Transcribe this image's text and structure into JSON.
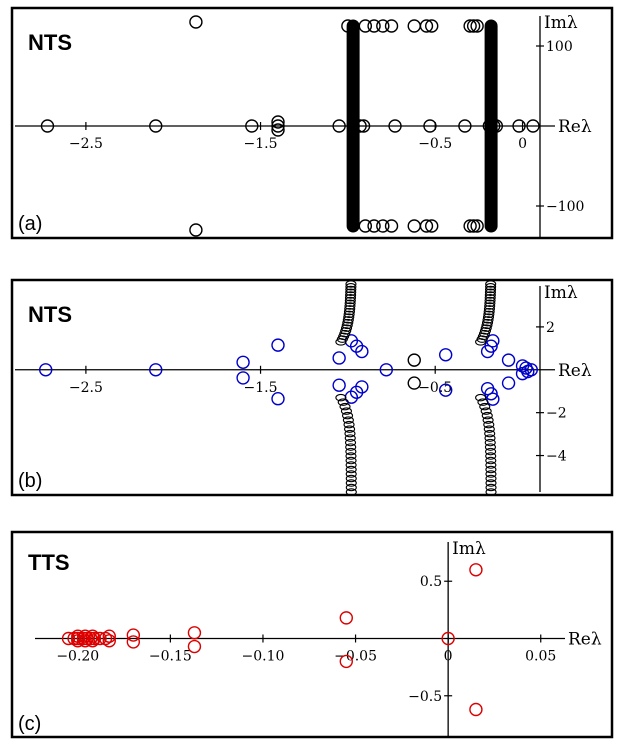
{
  "panels": [
    {
      "id": "a",
      "title": "NTS",
      "label": "(a)"
    },
    {
      "id": "b",
      "title": "NTS",
      "label": "(b)"
    },
    {
      "id": "c",
      "title": "TTS",
      "label": "(c)"
    }
  ],
  "chart_data": [
    {
      "type": "scatter",
      "title": "NTS",
      "panel_label": "(a)",
      "xlabel": "Reλ",
      "ylabel": "Imλ",
      "xlim": [
        -2.82,
        0.1
      ],
      "ylim": [
        -140,
        140
      ],
      "xticks": [
        -2.5,
        -1.5,
        -0.5,
        0
      ],
      "xtick_labels": [
        "−2.5",
        "−1.5",
        "−0.5",
        "0"
      ],
      "yticks": [
        100,
        -100
      ],
      "ytick_labels": [
        "100",
        "−100"
      ],
      "color": "#000000",
      "series": [
        {
          "points": [
            [
              -2.72,
              0
            ],
            [
              -2.1,
              0
            ],
            [
              -1.55,
              0
            ],
            [
              -1.4,
              0
            ],
            [
              -1.05,
              0
            ],
            [
              -0.97,
              0
            ],
            [
              -0.93,
              0
            ],
            [
              -0.91,
              0
            ],
            [
              -0.73,
              0
            ],
            [
              -0.53,
              0
            ],
            [
              -0.33,
              0
            ],
            [
              -0.19,
              0
            ],
            [
              -0.165,
              0
            ],
            [
              -0.15,
              0
            ],
            [
              -0.02,
              0
            ],
            [
              0.06,
              0
            ],
            [
              -1.4,
              5
            ],
            [
              -1.4,
              -5
            ],
            [
              -1.87,
              130
            ],
            [
              -1.87,
              -130
            ],
            [
              -1.0,
              125
            ],
            [
              -0.9,
              125
            ],
            [
              -0.85,
              125
            ],
            [
              -0.8,
              125
            ],
            [
              -0.75,
              125
            ],
            [
              -0.62,
              125
            ],
            [
              -0.55,
              125
            ],
            [
              -0.52,
              125
            ],
            [
              -0.3,
              125
            ],
            [
              -0.28,
              125
            ],
            [
              -0.26,
              125
            ],
            [
              -0.9,
              -125
            ],
            [
              -0.85,
              -125
            ],
            [
              -0.8,
              -125
            ],
            [
              -0.75,
              -125
            ],
            [
              -0.62,
              -125
            ],
            [
              -0.55,
              -125
            ],
            [
              -0.52,
              -125
            ],
            [
              -0.3,
              -125
            ],
            [
              -0.28,
              -125
            ],
            [
              -0.26,
              -125
            ]
          ],
          "dense_lines": [
            {
              "x": -0.97,
              "y_from": -125,
              "y_to": 125
            },
            {
              "x": -0.18,
              "y_from": -125,
              "y_to": 125
            }
          ]
        }
      ]
    },
    {
      "type": "scatter",
      "title": "NTS",
      "panel_label": "(b)",
      "xlabel": "Reλ",
      "ylabel": "Imλ",
      "xlim": [
        -2.82,
        0.1
      ],
      "ylim": [
        -5.7,
        4.0
      ],
      "xticks": [
        -2.5,
        -1.5,
        -0.5
      ],
      "xtick_labels": [
        "−2.5",
        "−1.5",
        "−0.5"
      ],
      "yticks": [
        2,
        -2,
        -4
      ],
      "ytick_labels": [
        "2",
        "−2",
        "−4"
      ],
      "series": [
        {
          "color": "#0000cc",
          "points": [
            [
              -2.73,
              0
            ],
            [
              -2.1,
              0
            ],
            [
              -1.6,
              0.35
            ],
            [
              -1.6,
              -0.38
            ],
            [
              -1.4,
              1.15
            ],
            [
              -1.4,
              -1.35
            ],
            [
              -1.05,
              0.55
            ],
            [
              -1.05,
              -0.72
            ],
            [
              -0.98,
              1.35
            ],
            [
              -0.95,
              1.1
            ],
            [
              -0.92,
              0.85
            ],
            [
              -0.98,
              -1.28
            ],
            [
              -0.95,
              -1.05
            ],
            [
              -0.92,
              -0.8
            ],
            [
              -0.78,
              0
            ],
            [
              -0.44,
              0.7
            ],
            [
              -0.44,
              -0.95
            ],
            [
              -0.2,
              0.85
            ],
            [
              -0.18,
              1.1
            ],
            [
              -0.17,
              1.35
            ],
            [
              -0.2,
              -0.88
            ],
            [
              -0.18,
              -1.12
            ],
            [
              -0.17,
              -1.37
            ],
            [
              -0.08,
              0.45
            ],
            [
              -0.08,
              -0.62
            ],
            [
              0.0,
              0.18
            ],
            [
              0.0,
              -0.18
            ],
            [
              0.02,
              0.08
            ],
            [
              0.03,
              -0.08
            ],
            [
              0.05,
              0
            ]
          ]
        },
        {
          "color": "#000000",
          "points": [
            [
              -0.62,
              0.45
            ],
            [
              -0.62,
              -0.62
            ]
          ],
          "curves": [
            {
              "x_base": -0.98,
              "y_from": 1.3,
              "y_to": 4.0
            },
            {
              "x_base": -0.98,
              "y_from": -1.3,
              "y_to": -5.7
            },
            {
              "x_base": -0.18,
              "y_from": 1.3,
              "y_to": 4.0
            },
            {
              "x_base": -0.18,
              "y_from": -1.3,
              "y_to": -5.7
            }
          ]
        }
      ]
    },
    {
      "type": "scatter",
      "title": "TTS",
      "panel_label": "(c)",
      "xlabel": "Reλ",
      "ylabel": "Imλ",
      "xlim": [
        -0.215,
        0.055
      ],
      "ylim": [
        -0.86,
        0.86
      ],
      "xticks": [
        -0.2,
        -0.15,
        -0.1,
        -0.05,
        0,
        0.05
      ],
      "xtick_labels": [
        "−0.20",
        "−0.15",
        "−0.10",
        "−0.05",
        "0",
        "0.05"
      ],
      "yticks": [
        0.5,
        -0.5
      ],
      "ytick_labels": [
        "0.5",
        "−0.5"
      ],
      "color": "#dd0000",
      "series": [
        {
          "points": [
            [
              -0.205,
              0
            ],
            [
              -0.202,
              0
            ],
            [
              -0.2,
              0
            ],
            [
              -0.197,
              0
            ],
            [
              -0.195,
              0
            ],
            [
              -0.193,
              0
            ],
            [
              -0.191,
              0
            ],
            [
              -0.188,
              0
            ],
            [
              -0.185,
              0
            ],
            [
              -0.2,
              0.02
            ],
            [
              -0.2,
              -0.02
            ],
            [
              -0.196,
              0.02
            ],
            [
              -0.196,
              -0.02
            ],
            [
              -0.192,
              0.02
            ],
            [
              -0.192,
              -0.02
            ],
            [
              -0.183,
              0.02
            ],
            [
              -0.183,
              -0.02
            ],
            [
              -0.17,
              0.03
            ],
            [
              -0.17,
              -0.03
            ],
            [
              -0.137,
              0.05
            ],
            [
              -0.137,
              -0.07
            ],
            [
              -0.055,
              0.18
            ],
            [
              -0.055,
              -0.2
            ],
            [
              0.0,
              0.0
            ],
            [
              0.015,
              0.6
            ],
            [
              0.015,
              -0.62
            ]
          ]
        }
      ]
    }
  ]
}
